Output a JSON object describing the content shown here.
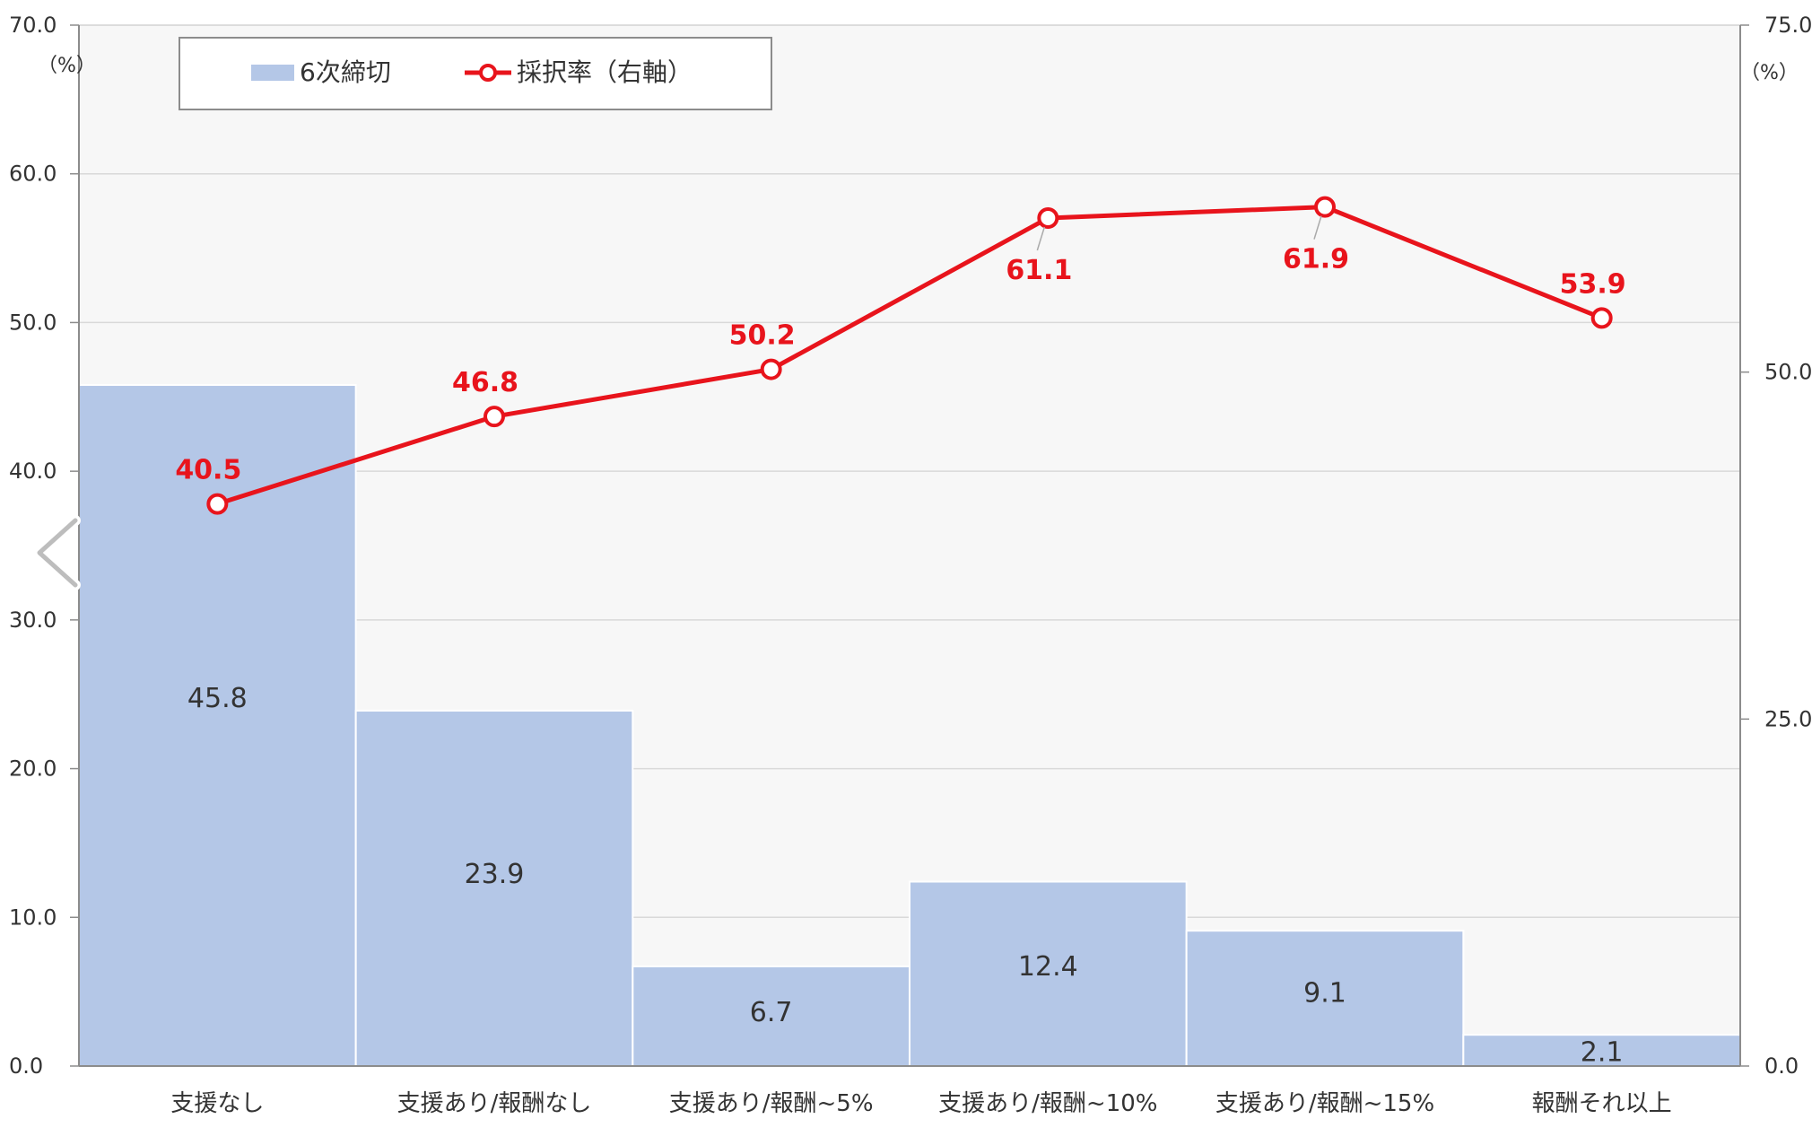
{
  "chart_data": {
    "type": "bar",
    "categories": [
      "支援なし",
      "支援あり/報酬なし",
      "支援あり/報酬~5%",
      "支援あり/報酬~10%",
      "支援あり/報酬~15%",
      "報酬それ以上"
    ],
    "series": [
      {
        "name": "6次締切",
        "type": "bar",
        "axis": "left",
        "values": [
          45.8,
          23.9,
          6.7,
          12.4,
          9.1,
          2.1
        ]
      },
      {
        "name": "採択率（右軸）",
        "type": "line",
        "axis": "right",
        "values": [
          40.5,
          46.8,
          50.2,
          61.1,
          61.9,
          53.9
        ]
      }
    ],
    "left_axis": {
      "unit": "（%）",
      "ylim": [
        0,
        70
      ],
      "ticks": [
        "0.0",
        "10.0",
        "20.0",
        "30.0",
        "40.0",
        "50.0",
        "60.0",
        "70.0"
      ]
    },
    "right_axis": {
      "unit": "（%）",
      "ylim": [
        0,
        75
      ],
      "ticks": [
        "0.0",
        "25.0",
        "50.0",
        "75.0"
      ]
    },
    "grid": true,
    "legend_position": "top-left",
    "colors": {
      "bar": "#b4c7e7",
      "line": "#e8141c",
      "plot_bg": "#f7f7f7",
      "grid": "#d9d9d9"
    }
  },
  "nav": {
    "prev_icon": "chevron-left-icon"
  }
}
